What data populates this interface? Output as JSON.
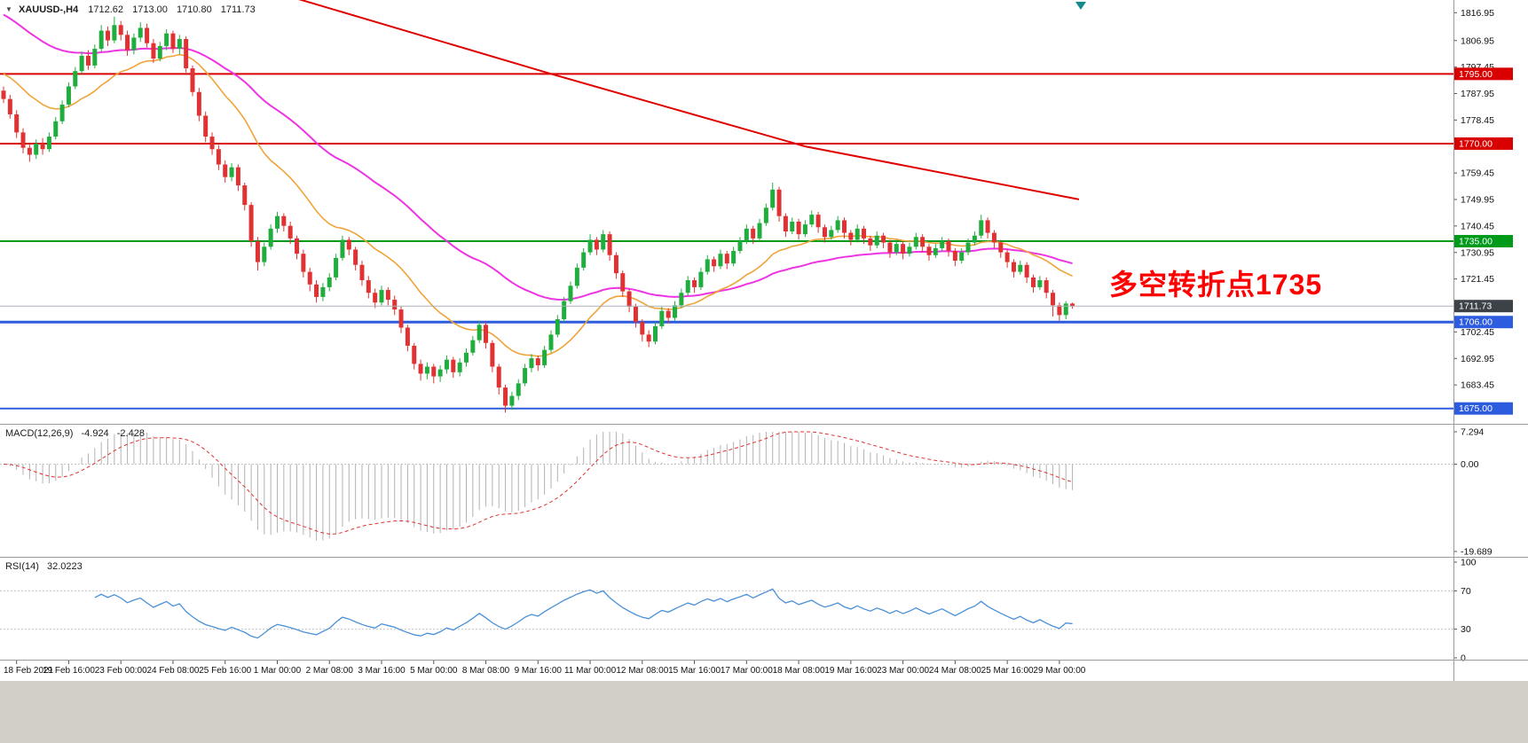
{
  "header": {
    "dropdown_icon": "▼",
    "symbol": "XAUUSD-,H4",
    "open": "1712.62",
    "high": "1713.00",
    "low": "1710.80",
    "close": "1711.73"
  },
  "annotation": {
    "text": "多空转折点1735",
    "color": "#ff0000"
  },
  "price_axis": {
    "view_max": 1821.5,
    "view_min": 1669.5,
    "ticks": [
      1816.95,
      1806.95,
      1797.45,
      1787.95,
      1778.45,
      1759.45,
      1749.95,
      1740.45,
      1730.95,
      1721.45,
      1702.45,
      1692.95,
      1683.45
    ]
  },
  "levels": [
    {
      "price": 1795.0,
      "label": "1795.00",
      "color": "#d80000",
      "width": 2
    },
    {
      "price": 1770.0,
      "label": "1770.00",
      "color": "#d80000",
      "width": 2
    },
    {
      "price": 1735.0,
      "label": "1735.00",
      "color": "#009a1a",
      "width": 2
    },
    {
      "price": 1706.0,
      "label": "1706.00",
      "color": "#2d5cde",
      "width": 3
    },
    {
      "price": 1675.0,
      "label": "1675.00",
      "color": "#2d5cde",
      "width": 2
    }
  ],
  "current_price": {
    "value": 1711.73,
    "label": "1711.73",
    "line_color": "#a9b1b9",
    "box_color": "#3d4248"
  },
  "scroll_marker_color": "#15898c",
  "chart_data": {
    "type": "candlestick",
    "title": "XAUUSD- H4",
    "x_labels": [
      "18 Feb 2021",
      "19 Feb 16:00",
      "23 Feb 00:00",
      "24 Feb 08:00",
      "25 Feb 16:00",
      "1 Mar 00:00",
      "2 Mar 08:00",
      "3 Mar 16:00",
      "5 Mar 00:00",
      "8 Mar 08:00",
      "9 Mar 16:00",
      "11 Mar 00:00",
      "12 Mar 08:00",
      "15 Mar 16:00",
      "17 Mar 00:00",
      "18 Mar 08:00",
      "19 Mar 16:00",
      "23 Mar 00:00",
      "24 Mar 08:00",
      "25 Mar 16:00",
      "29 Mar 00:00"
    ],
    "x_label_first_candle": 2,
    "x_label_step": 8,
    "colors": {
      "up": "#1fae3d",
      "down": "#e03232",
      "background": "#ffffff"
    },
    "candles_ohlc": [
      [
        1789.0,
        1790.5,
        1784.5,
        1786.0
      ],
      [
        1786.0,
        1787.5,
        1779.0,
        1780.5
      ],
      [
        1780.5,
        1782.0,
        1772.0,
        1774.0
      ],
      [
        1774.0,
        1775.5,
        1766.5,
        1768.5
      ],
      [
        1768.5,
        1770.0,
        1763.5,
        1766.0
      ],
      [
        1766.0,
        1771.5,
        1764.5,
        1770.0
      ],
      [
        1770.0,
        1772.0,
        1766.0,
        1768.0
      ],
      [
        1768.0,
        1774.0,
        1767.0,
        1772.5
      ],
      [
        1772.5,
        1779.5,
        1771.5,
        1778.0
      ],
      [
        1778.0,
        1785.5,
        1777.0,
        1784.0
      ],
      [
        1784.0,
        1792.0,
        1783.0,
        1790.5
      ],
      [
        1790.5,
        1797.5,
        1789.5,
        1796.0
      ],
      [
        1796.0,
        1803.0,
        1795.0,
        1801.5
      ],
      [
        1801.5,
        1803.5,
        1796.5,
        1798.0
      ],
      [
        1798.0,
        1805.5,
        1797.0,
        1804.0
      ],
      [
        1804.0,
        1812.5,
        1803.0,
        1810.5
      ],
      [
        1810.5,
        1812.0,
        1805.0,
        1807.0
      ],
      [
        1807.0,
        1815.5,
        1806.0,
        1812.5
      ],
      [
        1812.5,
        1814.0,
        1807.0,
        1809.0
      ],
      [
        1809.0,
        1810.5,
        1801.5,
        1803.5
      ],
      [
        1803.5,
        1809.5,
        1802.0,
        1808.0
      ],
      [
        1808.0,
        1813.5,
        1806.5,
        1811.5
      ],
      [
        1811.5,
        1813.0,
        1804.5,
        1806.0
      ],
      [
        1806.0,
        1807.5,
        1799.0,
        1800.5
      ],
      [
        1800.5,
        1806.5,
        1799.5,
        1805.0
      ],
      [
        1805.0,
        1811.0,
        1803.5,
        1809.5
      ],
      [
        1809.5,
        1810.5,
        1802.5,
        1804.0
      ],
      [
        1804.0,
        1809.0,
        1802.0,
        1807.5
      ],
      [
        1807.5,
        1808.5,
        1795.5,
        1797.0
      ],
      [
        1797.0,
        1798.0,
        1787.0,
        1788.5
      ],
      [
        1788.5,
        1790.0,
        1778.0,
        1780.0
      ],
      [
        1780.0,
        1781.5,
        1770.5,
        1772.5
      ],
      [
        1772.5,
        1774.0,
        1766.0,
        1768.0
      ],
      [
        1768.0,
        1769.5,
        1760.5,
        1762.5
      ],
      [
        1762.5,
        1764.0,
        1756.0,
        1758.0
      ],
      [
        1758.0,
        1763.0,
        1756.5,
        1761.5
      ],
      [
        1761.5,
        1762.5,
        1753.0,
        1755.0
      ],
      [
        1755.0,
        1756.0,
        1746.0,
        1748.0
      ],
      [
        1748.0,
        1749.0,
        1733.0,
        1735.0
      ],
      [
        1735.0,
        1736.5,
        1724.5,
        1727.5
      ],
      [
        1727.5,
        1734.5,
        1726.0,
        1733.0
      ],
      [
        1733.0,
        1741.0,
        1732.0,
        1739.5
      ],
      [
        1739.5,
        1745.5,
        1738.0,
        1744.0
      ],
      [
        1744.0,
        1745.0,
        1738.5,
        1740.5
      ],
      [
        1740.5,
        1742.0,
        1734.0,
        1736.0
      ],
      [
        1736.0,
        1737.0,
        1728.5,
        1730.5
      ],
      [
        1730.5,
        1732.0,
        1722.0,
        1724.0
      ],
      [
        1724.0,
        1725.5,
        1717.0,
        1719.5
      ],
      [
        1719.5,
        1721.0,
        1713.0,
        1715.0
      ],
      [
        1715.0,
        1720.0,
        1713.5,
        1718.5
      ],
      [
        1718.5,
        1723.5,
        1717.0,
        1722.0
      ],
      [
        1722.0,
        1730.5,
        1721.0,
        1729.0
      ],
      [
        1729.0,
        1737.0,
        1728.0,
        1735.5
      ],
      [
        1735.5,
        1736.5,
        1730.0,
        1732.0
      ],
      [
        1732.0,
        1733.0,
        1724.5,
        1726.5
      ],
      [
        1726.5,
        1728.0,
        1719.0,
        1721.0
      ],
      [
        1721.0,
        1722.5,
        1714.5,
        1716.5
      ],
      [
        1716.5,
        1718.0,
        1711.0,
        1713.0
      ],
      [
        1713.0,
        1719.0,
        1712.0,
        1717.5
      ],
      [
        1717.5,
        1718.5,
        1712.0,
        1714.0
      ],
      [
        1714.0,
        1715.5,
        1708.5,
        1710.5
      ],
      [
        1710.5,
        1711.5,
        1702.0,
        1704.0
      ],
      [
        1704.0,
        1705.0,
        1695.5,
        1697.5
      ],
      [
        1697.5,
        1698.5,
        1689.0,
        1691.0
      ],
      [
        1691.0,
        1692.5,
        1685.0,
        1687.5
      ],
      [
        1687.5,
        1691.5,
        1685.5,
        1690.0
      ],
      [
        1690.0,
        1691.0,
        1684.0,
        1686.5
      ],
      [
        1686.5,
        1690.5,
        1684.5,
        1689.0
      ],
      [
        1689.0,
        1694.0,
        1687.5,
        1692.5
      ],
      [
        1692.5,
        1693.5,
        1686.0,
        1688.0
      ],
      [
        1688.0,
        1693.0,
        1686.5,
        1691.5
      ],
      [
        1691.5,
        1696.5,
        1690.0,
        1695.0
      ],
      [
        1695.0,
        1701.0,
        1694.0,
        1699.5
      ],
      [
        1699.5,
        1706.5,
        1698.5,
        1705.0
      ],
      [
        1705.0,
        1706.0,
        1696.5,
        1698.5
      ],
      [
        1698.5,
        1699.5,
        1688.0,
        1690.0
      ],
      [
        1690.0,
        1691.0,
        1680.0,
        1682.5
      ],
      [
        1682.5,
        1683.5,
        1673.5,
        1676.0
      ],
      [
        1676.0,
        1681.0,
        1674.5,
        1679.5
      ],
      [
        1679.5,
        1685.5,
        1678.0,
        1684.0
      ],
      [
        1684.0,
        1691.0,
        1683.0,
        1689.5
      ],
      [
        1689.5,
        1694.5,
        1688.0,
        1693.0
      ],
      [
        1693.0,
        1694.0,
        1688.5,
        1690.5
      ],
      [
        1690.5,
        1697.5,
        1689.5,
        1696.0
      ],
      [
        1696.0,
        1703.0,
        1695.0,
        1701.5
      ],
      [
        1701.5,
        1708.5,
        1700.5,
        1707.0
      ],
      [
        1707.0,
        1715.0,
        1706.0,
        1713.5
      ],
      [
        1713.5,
        1720.5,
        1712.5,
        1719.0
      ],
      [
        1719.0,
        1727.0,
        1718.0,
        1725.5
      ],
      [
        1725.5,
        1732.5,
        1724.5,
        1731.0
      ],
      [
        1731.0,
        1737.5,
        1730.0,
        1735.5
      ],
      [
        1735.5,
        1736.5,
        1730.0,
        1732.0
      ],
      [
        1732.0,
        1739.0,
        1731.0,
        1737.5
      ],
      [
        1737.5,
        1738.5,
        1728.0,
        1730.0
      ],
      [
        1730.0,
        1731.0,
        1721.5,
        1723.5
      ],
      [
        1723.5,
        1724.5,
        1715.0,
        1717.0
      ],
      [
        1717.0,
        1718.0,
        1709.5,
        1711.5
      ],
      [
        1711.5,
        1712.5,
        1704.0,
        1706.0
      ],
      [
        1706.0,
        1707.0,
        1699.0,
        1701.5
      ],
      [
        1701.5,
        1703.0,
        1697.0,
        1699.0
      ],
      [
        1699.0,
        1706.0,
        1698.0,
        1704.5
      ],
      [
        1704.5,
        1711.5,
        1703.5,
        1710.0
      ],
      [
        1710.0,
        1711.0,
        1705.5,
        1707.5
      ],
      [
        1707.5,
        1713.5,
        1706.5,
        1712.0
      ],
      [
        1712.0,
        1718.0,
        1711.0,
        1716.5
      ],
      [
        1716.5,
        1722.5,
        1715.5,
        1721.0
      ],
      [
        1721.0,
        1722.0,
        1716.5,
        1718.5
      ],
      [
        1718.5,
        1725.5,
        1717.5,
        1724.0
      ],
      [
        1724.0,
        1730.0,
        1723.0,
        1728.5
      ],
      [
        1728.5,
        1729.5,
        1724.0,
        1726.0
      ],
      [
        1726.0,
        1732.0,
        1725.0,
        1730.5
      ],
      [
        1730.5,
        1731.5,
        1725.0,
        1727.0
      ],
      [
        1727.0,
        1733.0,
        1726.0,
        1731.5
      ],
      [
        1731.5,
        1736.5,
        1730.5,
        1735.0
      ],
      [
        1735.0,
        1741.0,
        1734.0,
        1739.5
      ],
      [
        1739.5,
        1740.5,
        1734.0,
        1736.0
      ],
      [
        1736.0,
        1743.0,
        1735.0,
        1741.5
      ],
      [
        1741.5,
        1748.5,
        1740.5,
        1747.0
      ],
      [
        1747.0,
        1756.0,
        1746.0,
        1753.5
      ],
      [
        1753.5,
        1754.5,
        1742.0,
        1744.0
      ],
      [
        1744.0,
        1745.0,
        1736.5,
        1738.5
      ],
      [
        1738.5,
        1743.5,
        1737.5,
        1742.0
      ],
      [
        1742.0,
        1743.0,
        1735.5,
        1737.5
      ],
      [
        1737.5,
        1742.5,
        1736.5,
        1741.0
      ],
      [
        1741.0,
        1746.0,
        1740.0,
        1744.5
      ],
      [
        1744.5,
        1745.5,
        1738.0,
        1740.0
      ],
      [
        1740.0,
        1741.0,
        1734.5,
        1736.5
      ],
      [
        1736.5,
        1740.5,
        1735.5,
        1739.0
      ],
      [
        1739.0,
        1744.0,
        1738.0,
        1742.5
      ],
      [
        1742.5,
        1743.5,
        1736.0,
        1738.0
      ],
      [
        1738.0,
        1739.0,
        1733.5,
        1735.5
      ],
      [
        1735.5,
        1741.0,
        1734.5,
        1739.5
      ],
      [
        1739.5,
        1740.5,
        1734.0,
        1736.0
      ],
      [
        1736.0,
        1737.0,
        1731.5,
        1733.5
      ],
      [
        1733.5,
        1738.5,
        1732.5,
        1737.0
      ],
      [
        1737.0,
        1738.0,
        1732.5,
        1734.5
      ],
      [
        1734.5,
        1735.5,
        1729.0,
        1731.0
      ],
      [
        1731.0,
        1735.5,
        1730.0,
        1734.0
      ],
      [
        1734.0,
        1735.0,
        1728.5,
        1730.5
      ],
      [
        1730.5,
        1734.5,
        1729.5,
        1733.0
      ],
      [
        1733.0,
        1738.0,
        1732.0,
        1736.5
      ],
      [
        1736.5,
        1737.5,
        1731.0,
        1733.0
      ],
      [
        1733.0,
        1734.0,
        1728.0,
        1730.0
      ],
      [
        1730.0,
        1734.0,
        1729.0,
        1732.5
      ],
      [
        1732.5,
        1736.5,
        1731.5,
        1735.0
      ],
      [
        1735.0,
        1736.0,
        1729.5,
        1731.5
      ],
      [
        1731.5,
        1732.5,
        1726.0,
        1728.0
      ],
      [
        1728.0,
        1732.5,
        1727.0,
        1731.0
      ],
      [
        1731.0,
        1736.0,
        1730.0,
        1734.5
      ],
      [
        1734.5,
        1738.5,
        1733.5,
        1737.0
      ],
      [
        1737.0,
        1744.5,
        1736.0,
        1742.5
      ],
      [
        1742.5,
        1743.5,
        1736.0,
        1738.0
      ],
      [
        1738.0,
        1739.0,
        1732.5,
        1734.5
      ],
      [
        1734.5,
        1735.5,
        1729.0,
        1731.0
      ],
      [
        1731.0,
        1732.0,
        1725.5,
        1727.5
      ],
      [
        1727.5,
        1728.5,
        1722.0,
        1724.0
      ],
      [
        1724.0,
        1728.0,
        1723.0,
        1726.5
      ],
      [
        1726.5,
        1727.5,
        1720.0,
        1722.0
      ],
      [
        1722.0,
        1723.0,
        1716.5,
        1718.5
      ],
      [
        1718.5,
        1722.5,
        1717.5,
        1721.0
      ],
      [
        1721.0,
        1722.0,
        1714.5,
        1716.5
      ],
      [
        1716.5,
        1717.5,
        1708.0,
        1712.0
      ],
      [
        1712.0,
        1713.0,
        1706.5,
        1708.5
      ],
      [
        1708.5,
        1713.5,
        1707.0,
        1712.62
      ],
      [
        1712.62,
        1713.0,
        1710.8,
        1711.73
      ]
    ],
    "overlays": {
      "ma_fast": {
        "type": "ema",
        "period": 20,
        "seed": 1796.0,
        "color": "#f0a339"
      },
      "ma_slow": {
        "type": "ema",
        "period": 50,
        "seed": 1817.5,
        "color": "#ee34e2"
      },
      "trendline": {
        "color": "#e00000",
        "points": [
          {
            "i": 45,
            "price": 1822.0
          },
          {
            "i": 84,
            "price": 1795.0
          },
          {
            "i": 123,
            "price": 1769.0
          },
          {
            "i": 165,
            "price": 1750.0
          }
        ]
      }
    },
    "indicators": {
      "macd": {
        "label": "MACD(12,26,9)",
        "value_main": "-4.924",
        "value_signal": "-2.428",
        "fast": 12,
        "slow": 26,
        "signal_period": 9,
        "scale_max": 7.294,
        "scale_min": -19.689,
        "scale_labels": [
          {
            "v": 7.294,
            "t": "7.294"
          },
          {
            "v": 0,
            "t": "0.00"
          },
          {
            "v": -19.689,
            "t": "-19.689"
          }
        ],
        "histogram_color": "#b2b2b2",
        "signal_color": "#e03232"
      },
      "rsi": {
        "label": "RSI(14)",
        "value": "32.0223",
        "period": 14,
        "guide_levels": [
          70,
          30
        ],
        "scale_labels": [
          {
            "v": 100,
            "t": "100"
          },
          {
            "v": 70,
            "t": "70"
          },
          {
            "v": 30,
            "t": "30"
          },
          {
            "v": 0,
            "t": "0"
          }
        ],
        "line_color": "#4a90d9"
      }
    }
  }
}
